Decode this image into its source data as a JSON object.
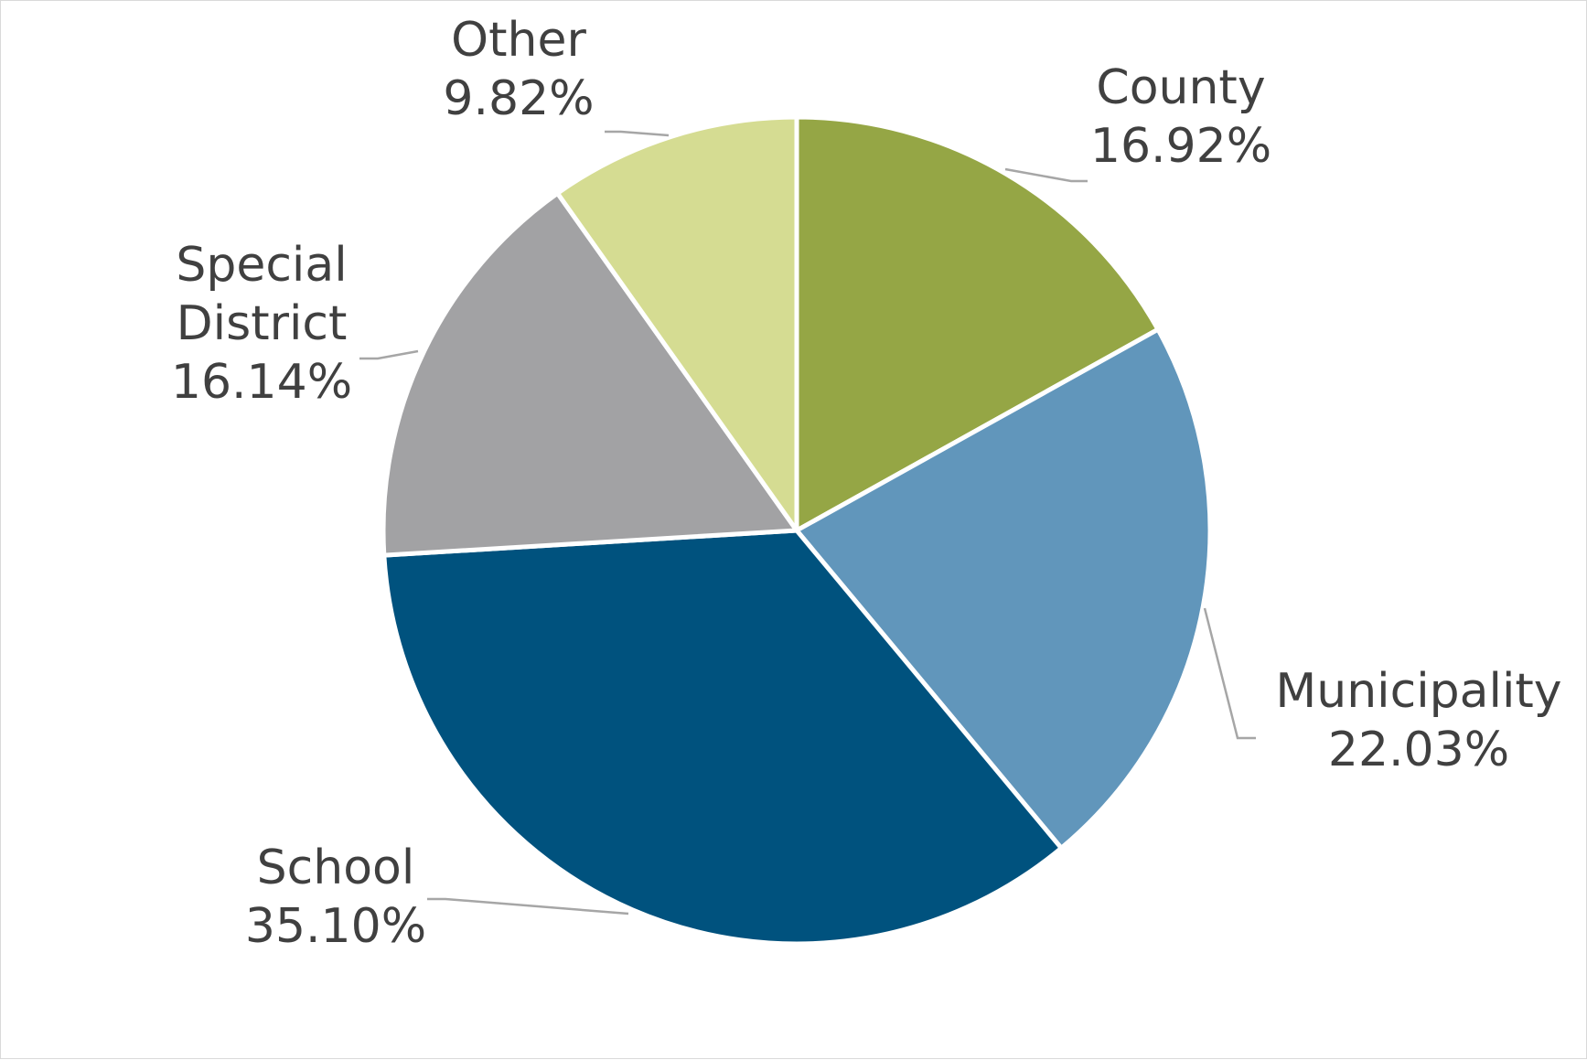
{
  "chart_data": {
    "type": "pie",
    "title": "",
    "start_angle_deg": 0,
    "direction": "clockwise",
    "slice_border_color": "#ffffff",
    "slices": [
      {
        "name": "County",
        "label_lines": [
          "County"
        ],
        "value_label": "16.92%",
        "value": 16.92,
        "color": "#95a645",
        "label_position": "right"
      },
      {
        "name": "Municipality",
        "label_lines": [
          "Municipality"
        ],
        "value_label": "22.03%",
        "value": 22.03,
        "color": "#6196bb",
        "label_position": "right"
      },
      {
        "name": "School",
        "label_lines": [
          "School"
        ],
        "value_label": "35.10%",
        "value": 35.1,
        "color": "#00527e",
        "label_position": "left"
      },
      {
        "name": "Special District",
        "label_lines": [
          "Special",
          "District"
        ],
        "value_label": "16.14%",
        "value": 16.14,
        "color": "#a2a2a4",
        "label_position": "left"
      },
      {
        "name": "Other",
        "label_lines": [
          "Other"
        ],
        "value_label": "9.82%",
        "value": 9.82,
        "color": "#d5dc92",
        "label_position": "left"
      }
    ]
  }
}
